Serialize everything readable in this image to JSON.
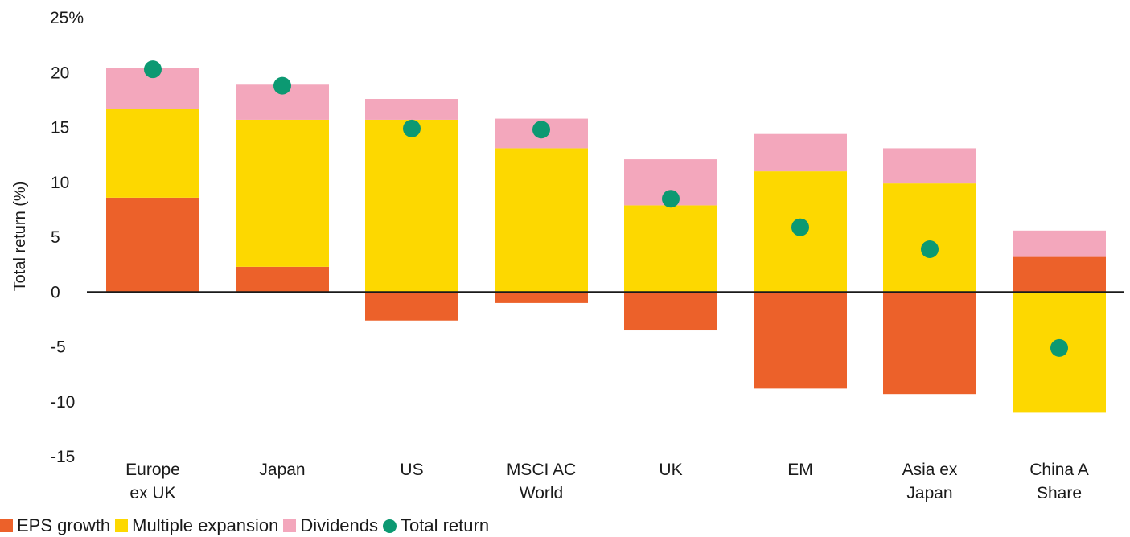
{
  "chart_data": {
    "type": "bar",
    "stacked": true,
    "categories": [
      [
        "Europe",
        "ex UK"
      ],
      [
        "Japan"
      ],
      [
        "US"
      ],
      [
        "MSCI AC",
        "World"
      ],
      [
        "UK"
      ],
      [
        "EM"
      ],
      [
        "Asia ex",
        "Japan"
      ],
      [
        "China A",
        "Share"
      ]
    ],
    "series": [
      {
        "name": "EPS growth",
        "color": "#EC612A",
        "values": [
          8.6,
          2.3,
          -2.6,
          -1.0,
          -3.5,
          -8.8,
          -9.3,
          3.2
        ]
      },
      {
        "name": "Multiple expansion",
        "color": "#FDD800",
        "values": [
          8.1,
          13.4,
          15.7,
          13.1,
          7.9,
          11.0,
          9.9,
          -11.0
        ]
      },
      {
        "name": "Dividends",
        "color": "#F3A7BC",
        "values": [
          3.7,
          3.2,
          1.9,
          2.7,
          4.2,
          3.4,
          3.2,
          2.4
        ]
      }
    ],
    "total_return": {
      "name": "Total return",
      "color": "#0C9972",
      "values": [
        20.3,
        18.8,
        14.9,
        14.8,
        8.5,
        5.9,
        3.9,
        -5.1
      ]
    },
    "ylabel": "Total return (%)",
    "ylim": [
      -15,
      25
    ],
    "yticks": [
      "25%",
      "20",
      "15",
      "10",
      "5",
      "0",
      "-5",
      "-10",
      "-15"
    ],
    "ytick_values": [
      25,
      20,
      15,
      10,
      5,
      0,
      -5,
      -10,
      -15
    ],
    "legend_position": "bottom-left",
    "grid": false
  }
}
